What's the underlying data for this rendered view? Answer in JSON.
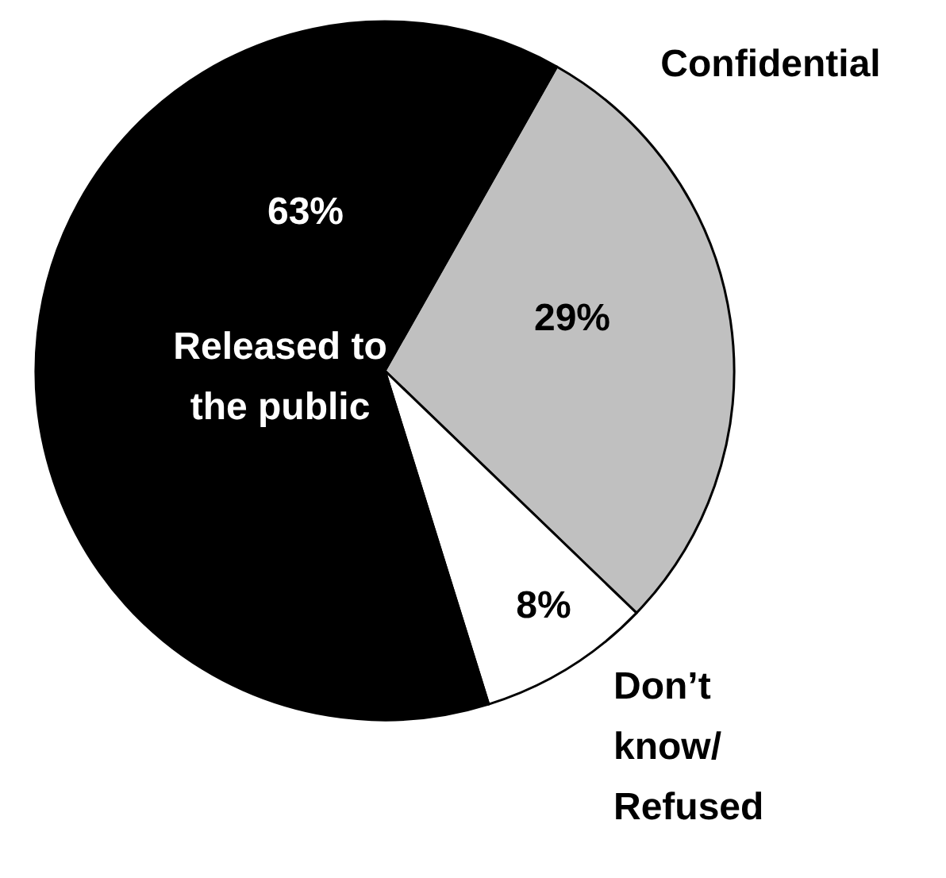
{
  "chart_data": {
    "type": "pie",
    "categories": [
      "Confidential",
      "Don’t know/Refused",
      "Released to the public"
    ],
    "values": [
      29,
      8,
      63
    ],
    "value_labels": [
      "29%",
      "8%",
      "63%"
    ],
    "colors": [
      "#c0c0c0",
      "#ffffff",
      "#000000"
    ]
  }
}
